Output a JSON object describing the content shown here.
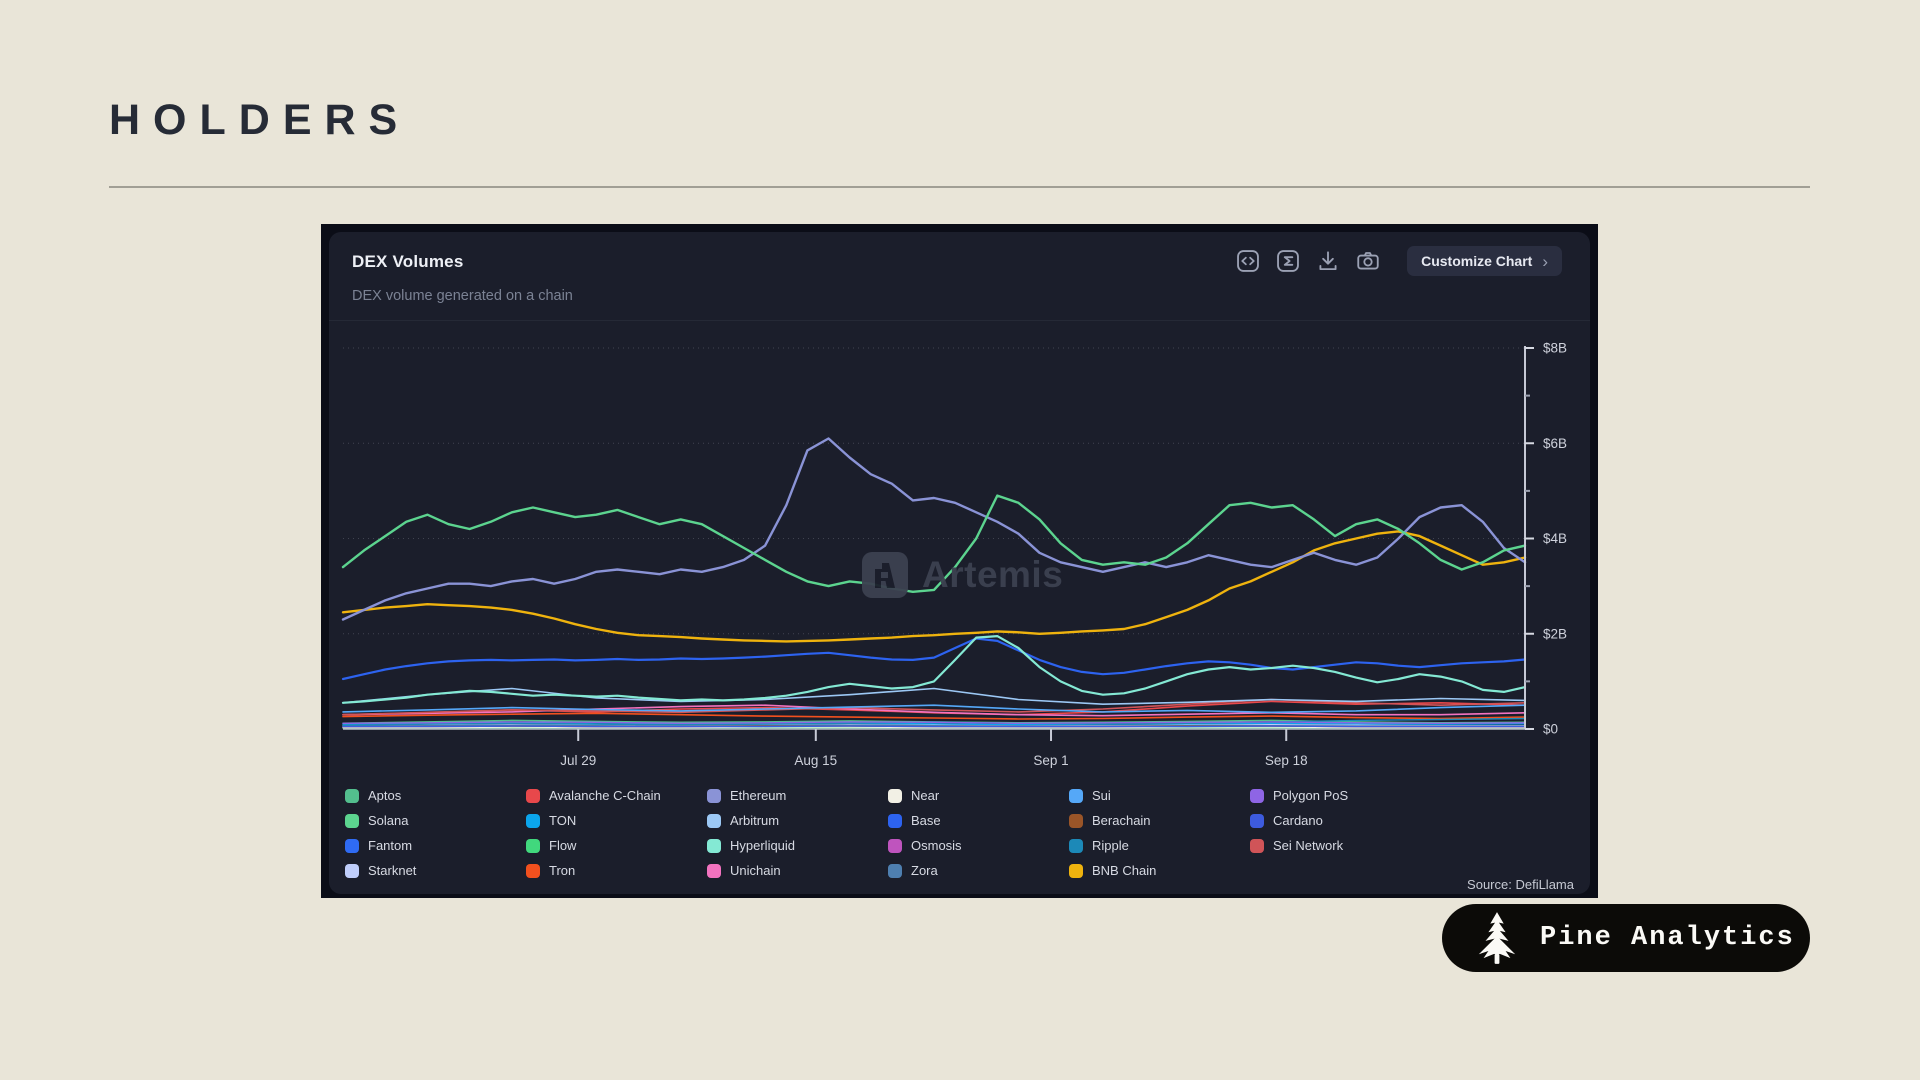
{
  "page": {
    "title": "HOLDERS",
    "background": "#e9e5d8"
  },
  "brand": {
    "label": "Pine Analytics",
    "icon": "pine-tree-icon",
    "bg": "#0c0b08",
    "fg": "#fbfaf6"
  },
  "panel": {
    "title": "DEX Volumes",
    "subtitle": "DEX volume generated on a chain",
    "watermark": "Artemis",
    "source": "Source: DefiLlama",
    "toolbar": {
      "customize_label": "Customize Chart",
      "chevron": "›",
      "icons": [
        "code-embed-icon",
        "sigma-summary-icon",
        "download-icon",
        "screenshot-camera-icon"
      ]
    }
  },
  "chart_data": {
    "type": "line",
    "title": "DEX Volumes",
    "subtitle": "DEX volume generated on a chain",
    "unit": "USD billions per day",
    "ylim": [
      0,
      8
    ],
    "grid": "horizontal-dotted",
    "legend_position": "bottom",
    "source": "DefiLlama",
    "y_ticks": [
      {
        "label": "$0",
        "v": 0
      },
      {
        "label": "$2B",
        "v": 2
      },
      {
        "label": "$4B",
        "v": 4
      },
      {
        "label": "$6B",
        "v": 6
      },
      {
        "label": "$8B",
        "v": 8
      }
    ],
    "y_minor_ticks": [
      1,
      3,
      5,
      7
    ],
    "x_ticks": [
      {
        "label": "Jul 29",
        "f": 0.199
      },
      {
        "label": "Aug 15",
        "f": 0.4
      },
      {
        "label": "Sep 1",
        "f": 0.599
      },
      {
        "label": "Sep 18",
        "f": 0.798
      }
    ],
    "series": [
      {
        "name": "Aptos",
        "color": "#53be8e",
        "z": 0,
        "lw": 1.5,
        "values": [
          0.12,
          0.15,
          0.18,
          0.16,
          0.14,
          0.15,
          0.17,
          0.15,
          0.13,
          0.14,
          0.16,
          0.18,
          0.15,
          0.13,
          0.14
        ]
      },
      {
        "name": "Solana",
        "color": "#5cd48f",
        "z": 5,
        "lw": 2.4,
        "values": [
          3.4,
          3.75,
          4.05,
          4.35,
          4.5,
          4.3,
          4.2,
          4.35,
          4.55,
          4.65,
          4.55,
          4.45,
          4.5,
          4.6,
          4.45,
          4.3,
          4.4,
          4.3,
          4.05,
          3.8,
          3.55,
          3.3,
          3.1,
          3.0,
          3.1,
          3.05,
          2.95,
          2.88,
          2.92,
          3.4,
          4.0,
          4.9,
          4.75,
          4.4,
          3.9,
          3.55,
          3.45,
          3.5,
          3.45,
          3.6,
          3.9,
          4.3,
          4.7,
          4.75,
          4.65,
          4.7,
          4.4,
          4.05,
          4.3,
          4.4,
          4.2,
          3.9,
          3.55,
          3.35,
          3.5,
          3.75,
          3.85
        ]
      },
      {
        "name": "Fantom",
        "color": "#2f6bf3",
        "z": 0,
        "lw": 1.4,
        "values": [
          0.04,
          0.04,
          0.05,
          0.04,
          0.04,
          0.05,
          0.05,
          0.04,
          0.04,
          0.04,
          0.05,
          0.05,
          0.04,
          0.04,
          0.04
        ]
      },
      {
        "name": "Starknet",
        "color": "#bfcdfa",
        "z": 0,
        "lw": 1.4,
        "values": [
          0.07,
          0.08,
          0.09,
          0.08,
          0.07,
          0.08,
          0.09,
          0.08,
          0.07,
          0.07,
          0.08,
          0.09,
          0.08,
          0.07,
          0.07
        ]
      },
      {
        "name": "Avalanche C-Chain",
        "color": "#e8484b",
        "z": 0,
        "lw": 1.6,
        "values": [
          0.3,
          0.34,
          0.4,
          0.36,
          0.42,
          0.45,
          0.4,
          0.34,
          0.3,
          0.36,
          0.48,
          0.58,
          0.52,
          0.55,
          0.5
        ]
      },
      {
        "name": "TON",
        "color": "#0ba5ec",
        "z": 0,
        "lw": 1.4,
        "values": [
          0.1,
          0.12,
          0.13,
          0.11,
          0.1,
          0.11,
          0.12,
          0.11,
          0.09,
          0.1,
          0.11,
          0.12,
          0.11,
          0.1,
          0.11
        ]
      },
      {
        "name": "Flow",
        "color": "#41d87d",
        "z": 0,
        "lw": 1.4,
        "values": [
          0.02,
          0.02,
          0.02,
          0.02,
          0.02,
          0.02,
          0.02,
          0.02,
          0.02,
          0.02,
          0.02,
          0.02,
          0.02,
          0.02,
          0.02
        ]
      },
      {
        "name": "Tron",
        "color": "#f2501e",
        "z": 0,
        "lw": 1.6,
        "values": [
          0.26,
          0.29,
          0.31,
          0.33,
          0.3,
          0.27,
          0.25,
          0.23,
          0.21,
          0.22,
          0.25,
          0.27,
          0.24,
          0.22,
          0.25
        ]
      },
      {
        "name": "Ethereum",
        "color": "#8a93d6",
        "z": 4,
        "lw": 2.4,
        "values": [
          2.3,
          2.5,
          2.7,
          2.85,
          2.95,
          3.05,
          3.05,
          3.0,
          3.1,
          3.15,
          3.05,
          3.15,
          3.3,
          3.35,
          3.3,
          3.25,
          3.35,
          3.3,
          3.4,
          3.55,
          3.85,
          4.7,
          5.85,
          6.1,
          5.7,
          5.35,
          5.15,
          4.8,
          4.85,
          4.75,
          4.55,
          4.35,
          4.1,
          3.7,
          3.5,
          3.4,
          3.3,
          3.4,
          3.5,
          3.4,
          3.5,
          3.65,
          3.55,
          3.45,
          3.4,
          3.55,
          3.7,
          3.55,
          3.45,
          3.6,
          4.0,
          4.45,
          4.65,
          4.7,
          4.35,
          3.8,
          3.5
        ]
      },
      {
        "name": "Arbitrum",
        "color": "#9cc8f5",
        "z": 1,
        "lw": 1.6,
        "values": [
          0.55,
          0.72,
          0.85,
          0.65,
          0.58,
          0.62,
          0.72,
          0.85,
          0.62,
          0.52,
          0.56,
          0.62,
          0.58,
          0.64,
          0.6
        ]
      },
      {
        "name": "Hyperliquid",
        "color": "#84e9d4",
        "z": 3,
        "lw": 2.2,
        "values": [
          0.55,
          0.58,
          0.62,
          0.66,
          0.72,
          0.76,
          0.8,
          0.78,
          0.74,
          0.7,
          0.72,
          0.7,
          0.68,
          0.7,
          0.66,
          0.63,
          0.6,
          0.62,
          0.6,
          0.62,
          0.65,
          0.7,
          0.78,
          0.88,
          0.95,
          0.9,
          0.85,
          0.88,
          1.0,
          1.45,
          1.92,
          1.95,
          1.7,
          1.3,
          1.0,
          0.8,
          0.72,
          0.75,
          0.85,
          1.0,
          1.15,
          1.25,
          1.3,
          1.25,
          1.28,
          1.33,
          1.28,
          1.2,
          1.08,
          0.98,
          1.05,
          1.15,
          1.1,
          1.0,
          0.82,
          0.78,
          0.88
        ]
      },
      {
        "name": "Unichain",
        "color": "#f373c0",
        "z": 0,
        "lw": 1.6,
        "values": [
          0.3,
          0.33,
          0.36,
          0.42,
          0.47,
          0.5,
          0.42,
          0.35,
          0.3,
          0.28,
          0.31,
          0.34,
          0.3,
          0.3,
          0.34
        ]
      },
      {
        "name": "Near",
        "color": "#f2f0e5",
        "z": 0,
        "lw": 1.4,
        "values": [
          0.03,
          0.03,
          0.04,
          0.03,
          0.03,
          0.04,
          0.04,
          0.03,
          0.03,
          0.03,
          0.04,
          0.04,
          0.03,
          0.03,
          0.03
        ]
      },
      {
        "name": "Base",
        "color": "#2d63f0",
        "z": 2,
        "lw": 2.2,
        "values": [
          1.05,
          1.15,
          1.25,
          1.32,
          1.38,
          1.42,
          1.44,
          1.45,
          1.44,
          1.45,
          1.46,
          1.44,
          1.45,
          1.47,
          1.45,
          1.46,
          1.48,
          1.47,
          1.48,
          1.5,
          1.52,
          1.55,
          1.58,
          1.6,
          1.55,
          1.5,
          1.46,
          1.45,
          1.5,
          1.7,
          1.9,
          1.85,
          1.65,
          1.45,
          1.3,
          1.2,
          1.15,
          1.18,
          1.25,
          1.32,
          1.38,
          1.42,
          1.4,
          1.35,
          1.28,
          1.25,
          1.3,
          1.35,
          1.4,
          1.38,
          1.33,
          1.3,
          1.34,
          1.38,
          1.4,
          1.42,
          1.46
        ]
      },
      {
        "name": "Osmosis",
        "color": "#bf54be",
        "z": 0,
        "lw": 1.4,
        "values": [
          0.05,
          0.06,
          0.06,
          0.05,
          0.05,
          0.06,
          0.07,
          0.06,
          0.05,
          0.05,
          0.06,
          0.06,
          0.05,
          0.05,
          0.05
        ]
      },
      {
        "name": "Zora",
        "color": "#4e7fb0",
        "z": 0,
        "lw": 1.4,
        "values": [
          0.06,
          0.07,
          0.08,
          0.07,
          0.06,
          0.07,
          0.08,
          0.07,
          0.06,
          0.06,
          0.07,
          0.07,
          0.06,
          0.06,
          0.06
        ]
      },
      {
        "name": "Sui",
        "color": "#55a8f8",
        "z": 1,
        "lw": 1.6,
        "values": [
          0.36,
          0.4,
          0.45,
          0.41,
          0.38,
          0.42,
          0.46,
          0.5,
          0.42,
          0.36,
          0.39,
          0.35,
          0.38,
          0.45,
          0.5
        ]
      },
      {
        "name": "Berachain",
        "color": "#9a5528",
        "z": 0,
        "lw": 1.4,
        "values": [
          0.05,
          0.05,
          0.06,
          0.05,
          0.05,
          0.06,
          0.06,
          0.05,
          0.05,
          0.05,
          0.06,
          0.06,
          0.05,
          0.05,
          0.05
        ]
      },
      {
        "name": "Ripple",
        "color": "#1c89b8",
        "z": 0,
        "lw": 1.4,
        "values": [
          0.08,
          0.1,
          0.12,
          0.1,
          0.09,
          0.1,
          0.12,
          0.15,
          0.12,
          0.1,
          0.12,
          0.15,
          0.18,
          0.2,
          0.22
        ]
      },
      {
        "name": "BNB Chain",
        "color": "#efb30e",
        "z": 3,
        "lw": 2.4,
        "values": [
          2.45,
          2.5,
          2.55,
          2.58,
          2.62,
          2.6,
          2.58,
          2.55,
          2.5,
          2.42,
          2.32,
          2.2,
          2.1,
          2.02,
          1.97,
          1.95,
          1.93,
          1.9,
          1.88,
          1.86,
          1.85,
          1.84,
          1.85,
          1.86,
          1.88,
          1.9,
          1.92,
          1.95,
          1.97,
          2.0,
          2.02,
          2.05,
          2.03,
          2.0,
          2.02,
          2.05,
          2.07,
          2.1,
          2.2,
          2.35,
          2.5,
          2.7,
          2.95,
          3.1,
          3.3,
          3.5,
          3.75,
          3.9,
          4.0,
          4.1,
          4.15,
          4.05,
          3.85,
          3.65,
          3.45,
          3.5,
          3.6
        ]
      },
      {
        "name": "Polygon PoS",
        "color": "#8e65e5",
        "z": 0,
        "lw": 1.4,
        "values": [
          0.12,
          0.13,
          0.15,
          0.14,
          0.12,
          0.13,
          0.15,
          0.14,
          0.12,
          0.13,
          0.14,
          0.15,
          0.13,
          0.12,
          0.13
        ]
      },
      {
        "name": "Cardano",
        "color": "#3d5bde",
        "z": 0,
        "lw": 1.4,
        "values": [
          0.05,
          0.05,
          0.06,
          0.05,
          0.05,
          0.05,
          0.06,
          0.05,
          0.05,
          0.05,
          0.05,
          0.06,
          0.05,
          0.05,
          0.05
        ]
      },
      {
        "name": "Sei Network",
        "color": "#d05458",
        "z": 0,
        "lw": 1.6,
        "values": [
          0.3,
          0.35,
          0.4,
          0.38,
          0.35,
          0.4,
          0.45,
          0.4,
          0.36,
          0.42,
          0.52,
          0.62,
          0.55,
          0.5,
          0.55
        ]
      }
    ]
  }
}
